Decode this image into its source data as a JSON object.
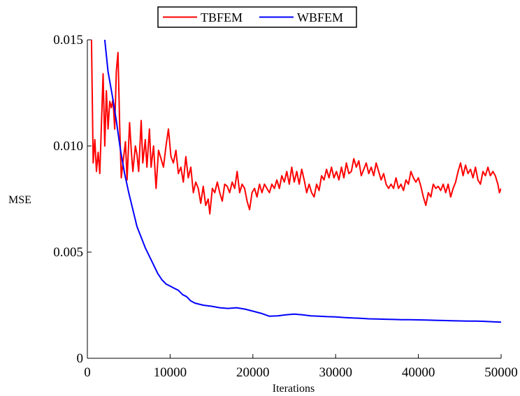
{
  "chart_data": {
    "type": "line",
    "xlabel": "Iterations",
    "ylabel": "MSE",
    "xlim": [
      0,
      50000
    ],
    "ylim": [
      0,
      0.015
    ],
    "xticks": [
      {
        "value": 0,
        "label": "0"
      },
      {
        "value": 10000,
        "label": "10000"
      },
      {
        "value": 20000,
        "label": "20000"
      },
      {
        "value": 30000,
        "label": "30000"
      },
      {
        "value": 40000,
        "label": "40000"
      },
      {
        "value": 50000,
        "label": "50000"
      }
    ],
    "yticks": [
      {
        "value": 0,
        "label": "0"
      },
      {
        "value": 0.005,
        "label": "0.005"
      },
      {
        "value": 0.01,
        "label": "0.010"
      },
      {
        "value": 0.015,
        "label": "0.015"
      }
    ],
    "grid": false,
    "legend_position": "top-center",
    "series": [
      {
        "name": "TBFEM",
        "color": "#ff0000",
        "points": [
          [
            500,
            0.015
          ],
          [
            700,
            0.0092
          ],
          [
            900,
            0.0103
          ],
          [
            1100,
            0.0088
          ],
          [
            1300,
            0.0097
          ],
          [
            1500,
            0.0087
          ],
          [
            1700,
            0.011
          ],
          [
            1900,
            0.0134
          ],
          [
            2100,
            0.01
          ],
          [
            2300,
            0.0126
          ],
          [
            2500,
            0.0108
          ],
          [
            2700,
            0.0121
          ],
          [
            2900,
            0.0118
          ],
          [
            3100,
            0.0122
          ],
          [
            3300,
            0.0108
          ],
          [
            3500,
            0.0135
          ],
          [
            3700,
            0.0144
          ],
          [
            3900,
            0.011
          ],
          [
            4100,
            0.0085
          ],
          [
            4300,
            0.0092
          ],
          [
            4600,
            0.0102
          ],
          [
            4800,
            0.0084
          ],
          [
            5100,
            0.0111
          ],
          [
            5300,
            0.0098
          ],
          [
            5500,
            0.0088
          ],
          [
            5800,
            0.01
          ],
          [
            6000,
            0.0096
          ],
          [
            6200,
            0.0088
          ],
          [
            6500,
            0.0112
          ],
          [
            6700,
            0.0092
          ],
          [
            7000,
            0.0103
          ],
          [
            7200,
            0.009
          ],
          [
            7500,
            0.0108
          ],
          [
            7700,
            0.009
          ],
          [
            8000,
            0.01
          ],
          [
            8300,
            0.008
          ],
          [
            8600,
            0.0098
          ],
          [
            8900,
            0.0094
          ],
          [
            9200,
            0.009
          ],
          [
            9500,
            0.01
          ],
          [
            9800,
            0.0108
          ],
          [
            10100,
            0.0095
          ],
          [
            10400,
            0.0092
          ],
          [
            10700,
            0.0098
          ],
          [
            11000,
            0.0087
          ],
          [
            11300,
            0.009
          ],
          [
            11600,
            0.0083
          ],
          [
            11900,
            0.0095
          ],
          [
            12200,
            0.0085
          ],
          [
            12500,
            0.009
          ],
          [
            12800,
            0.0078
          ],
          [
            13100,
            0.0083
          ],
          [
            13400,
            0.008
          ],
          [
            13700,
            0.0073
          ],
          [
            14000,
            0.0081
          ],
          [
            14300,
            0.0072
          ],
          [
            14600,
            0.0075
          ],
          [
            14800,
            0.0068
          ],
          [
            15100,
            0.008
          ],
          [
            15400,
            0.0078
          ],
          [
            15700,
            0.0083
          ],
          [
            16000,
            0.0078
          ],
          [
            16300,
            0.0074
          ],
          [
            16600,
            0.0082
          ],
          [
            16900,
            0.0081
          ],
          [
            17200,
            0.0078
          ],
          [
            17500,
            0.0083
          ],
          [
            17800,
            0.008
          ],
          [
            18100,
            0.0088
          ],
          [
            18400,
            0.0078
          ],
          [
            18700,
            0.0082
          ],
          [
            19000,
            0.008
          ],
          [
            19300,
            0.0074
          ],
          [
            19600,
            0.007
          ],
          [
            19900,
            0.0078
          ],
          [
            20200,
            0.008
          ],
          [
            20500,
            0.0076
          ],
          [
            20800,
            0.0082
          ],
          [
            21100,
            0.0078
          ],
          [
            21400,
            0.0082
          ],
          [
            21700,
            0.008
          ],
          [
            22000,
            0.0078
          ],
          [
            22300,
            0.0082
          ],
          [
            22600,
            0.008
          ],
          [
            22900,
            0.0084
          ],
          [
            23200,
            0.008
          ],
          [
            23500,
            0.0086
          ],
          [
            23800,
            0.0083
          ],
          [
            24100,
            0.0088
          ],
          [
            24400,
            0.0082
          ],
          [
            24700,
            0.009
          ],
          [
            25000,
            0.0083
          ],
          [
            25300,
            0.0088
          ],
          [
            25600,
            0.0082
          ],
          [
            25900,
            0.0089
          ],
          [
            26200,
            0.0084
          ],
          [
            26500,
            0.0078
          ],
          [
            26800,
            0.0082
          ],
          [
            27100,
            0.0078
          ],
          [
            27400,
            0.0076
          ],
          [
            27700,
            0.0082
          ],
          [
            28000,
            0.0079
          ],
          [
            28300,
            0.0086
          ],
          [
            28600,
            0.0084
          ],
          [
            28900,
            0.0089
          ],
          [
            29200,
            0.0085
          ],
          [
            29500,
            0.009
          ],
          [
            29800,
            0.0085
          ],
          [
            30100,
            0.0088
          ],
          [
            30400,
            0.0084
          ],
          [
            30700,
            0.009
          ],
          [
            31000,
            0.0085
          ],
          [
            31300,
            0.0092
          ],
          [
            31600,
            0.0087
          ],
          [
            31900,
            0.0088
          ],
          [
            32200,
            0.0094
          ],
          [
            32500,
            0.009
          ],
          [
            32800,
            0.0093
          ],
          [
            33100,
            0.0086
          ],
          [
            33400,
            0.0089
          ],
          [
            33700,
            0.0092
          ],
          [
            34000,
            0.0087
          ],
          [
            34300,
            0.009
          ],
          [
            34600,
            0.0086
          ],
          [
            34900,
            0.0092
          ],
          [
            35200,
            0.0088
          ],
          [
            35500,
            0.0084
          ],
          [
            35800,
            0.0087
          ],
          [
            36100,
            0.0082
          ],
          [
            36400,
            0.008
          ],
          [
            36700,
            0.0082
          ],
          [
            37000,
            0.008
          ],
          [
            37300,
            0.0085
          ],
          [
            37600,
            0.008
          ],
          [
            37900,
            0.0082
          ],
          [
            38200,
            0.0079
          ],
          [
            38500,
            0.0084
          ],
          [
            38800,
            0.0082
          ],
          [
            39100,
            0.0088
          ],
          [
            39400,
            0.0085
          ],
          [
            39700,
            0.0083
          ],
          [
            40000,
            0.0085
          ],
          [
            40300,
            0.0081
          ],
          [
            40600,
            0.0076
          ],
          [
            40900,
            0.0072
          ],
          [
            41200,
            0.0078
          ],
          [
            41500,
            0.0076
          ],
          [
            41800,
            0.0082
          ],
          [
            42100,
            0.008
          ],
          [
            42400,
            0.0081
          ],
          [
            42700,
            0.0079
          ],
          [
            43000,
            0.0082
          ],
          [
            43300,
            0.0078
          ],
          [
            43600,
            0.0082
          ],
          [
            43900,
            0.0076
          ],
          [
            44200,
            0.008
          ],
          [
            44500,
            0.0083
          ],
          [
            44800,
            0.0088
          ],
          [
            45100,
            0.0092
          ],
          [
            45400,
            0.0086
          ],
          [
            45700,
            0.0091
          ],
          [
            46000,
            0.0087
          ],
          [
            46300,
            0.0089
          ],
          [
            46600,
            0.0085
          ],
          [
            46900,
            0.009
          ],
          [
            47200,
            0.0084
          ],
          [
            47500,
            0.0082
          ],
          [
            47800,
            0.0088
          ],
          [
            48100,
            0.0086
          ],
          [
            48400,
            0.009
          ],
          [
            48700,
            0.0086
          ],
          [
            49000,
            0.0088
          ],
          [
            49300,
            0.0086
          ],
          [
            49600,
            0.0082
          ],
          [
            49800,
            0.0078
          ],
          [
            50000,
            0.008
          ]
        ]
      },
      {
        "name": "WBFEM",
        "color": "#0000ff",
        "points": [
          [
            2100,
            0.015
          ],
          [
            2500,
            0.0135
          ],
          [
            3000,
            0.0124
          ],
          [
            3500,
            0.0112
          ],
          [
            4000,
            0.0098
          ],
          [
            4500,
            0.0087
          ],
          [
            5000,
            0.0078
          ],
          [
            5500,
            0.007
          ],
          [
            6000,
            0.0062
          ],
          [
            6500,
            0.0057
          ],
          [
            7000,
            0.0052
          ],
          [
            7500,
            0.0048
          ],
          [
            8000,
            0.0044
          ],
          [
            8500,
            0.004
          ],
          [
            9000,
            0.0037
          ],
          [
            9500,
            0.0035
          ],
          [
            10000,
            0.0034
          ],
          [
            10500,
            0.0033
          ],
          [
            11000,
            0.0032
          ],
          [
            11500,
            0.003
          ],
          [
            12000,
            0.0029
          ],
          [
            12500,
            0.0027
          ],
          [
            13000,
            0.0026
          ],
          [
            14000,
            0.0025
          ],
          [
            15000,
            0.00245
          ],
          [
            16000,
            0.00238
          ],
          [
            17000,
            0.00235
          ],
          [
            18000,
            0.00238
          ],
          [
            19000,
            0.00232
          ],
          [
            20000,
            0.00222
          ],
          [
            21000,
            0.00212
          ],
          [
            22000,
            0.00198
          ],
          [
            23000,
            0.002
          ],
          [
            24000,
            0.00205
          ],
          [
            25000,
            0.00208
          ],
          [
            26000,
            0.00205
          ],
          [
            27000,
            0.002
          ],
          [
            28000,
            0.00198
          ],
          [
            29000,
            0.00196
          ],
          [
            30000,
            0.00195
          ],
          [
            31000,
            0.00192
          ],
          [
            32000,
            0.0019
          ],
          [
            33000,
            0.00188
          ],
          [
            34000,
            0.00186
          ],
          [
            35000,
            0.00185
          ],
          [
            36000,
            0.00184
          ],
          [
            37000,
            0.00183
          ],
          [
            38000,
            0.00182
          ],
          [
            39000,
            0.00182
          ],
          [
            40000,
            0.00181
          ],
          [
            41000,
            0.0018
          ],
          [
            42000,
            0.00179
          ],
          [
            43000,
            0.00178
          ],
          [
            44000,
            0.00177
          ],
          [
            45000,
            0.00176
          ],
          [
            46000,
            0.00175
          ],
          [
            47000,
            0.00175
          ],
          [
            48000,
            0.00174
          ],
          [
            49000,
            0.00172
          ],
          [
            50000,
            0.0017
          ]
        ]
      }
    ]
  }
}
